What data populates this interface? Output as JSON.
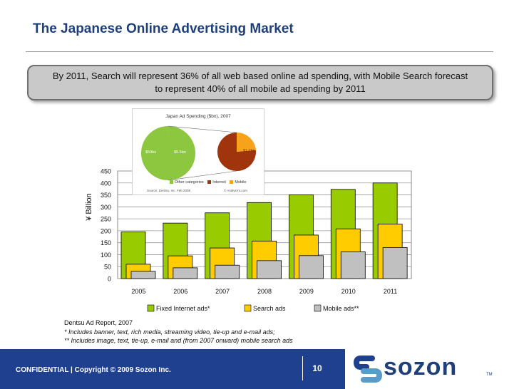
{
  "page": {
    "title": "The Japanese Online Advertising Market",
    "callout": "By 2011, Search will represent 36% of all web based online ad spending, with Mobile Search forecast to represent 40% of all mobile ad spending by 2011"
  },
  "chart_data": [
    {
      "type": "bar",
      "title": "",
      "xlabel": "",
      "ylabel": "¥ Billion",
      "ylim": [
        0,
        450
      ],
      "yticks": [
        "0",
        "50",
        "100",
        "150",
        "200",
        "250",
        "300",
        "350",
        "400",
        "450"
      ],
      "grid": true,
      "legend_position": "bottom",
      "categories": [
        "2005",
        "2006",
        "2007",
        "2008",
        "2009",
        "2010",
        "2011"
      ],
      "series": [
        {
          "name": "Fixed Internet ads*",
          "color": "#99cc00",
          "values": [
            195,
            232,
            275,
            318,
            350,
            373,
            400
          ]
        },
        {
          "name": "Search ads",
          "color": "#ffcc00",
          "values": [
            60,
            95,
            128,
            157,
            182,
            208,
            228
          ]
        },
        {
          "name": "Mobile ads**",
          "color": "#c0c0c0",
          "values": [
            30,
            45,
            56,
            75,
            96,
            112,
            130
          ]
        }
      ]
    },
    {
      "type": "pie",
      "title": "Japan Ad Spending ($bn), 2007",
      "slices": [
        {
          "name": "Other categories",
          "value": 59,
          "label": "$59bn",
          "color": "#8dc63f"
        },
        {
          "name": "Internet",
          "value": 5.5,
          "label": "$5.5bn",
          "color": "#a0340c"
        },
        {
          "name": "Mobile",
          "value": 1.7,
          "label": "$1.7bn",
          "color": "#f7a21b"
        }
      ],
      "source": "Source: Dentsu, Inc. Feb 2008",
      "site": "© AnalysYs.com"
    }
  ],
  "footnotes": {
    "source": "Dentsu Ad Report, 2007",
    "note1": "* Includes banner, text, rich media, streaming video, tie-up and e-mail ads;",
    "note2": "** Includes image, text, tie-up, e-mail and (from 2007 onward) mobile search ads"
  },
  "footer": {
    "confidential": "CONFIDENTIAL | Copyright © 2009 Sozon Inc.",
    "page_number": "10",
    "logo_text": "sozon",
    "logo_tm": "TM",
    "colors": {
      "band": "#1f3f8f",
      "logo_s1": "#1f3f8f",
      "logo_s2": "#5a9cc9"
    }
  }
}
